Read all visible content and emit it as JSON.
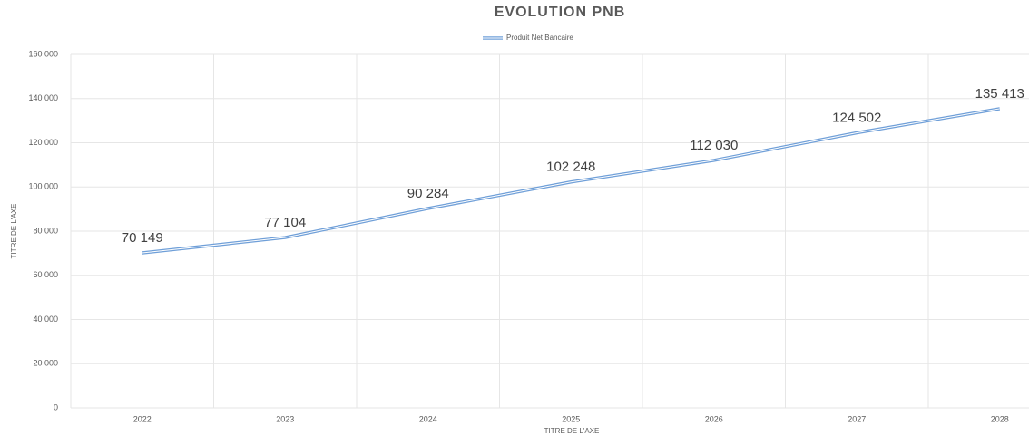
{
  "chart_data": {
    "type": "line",
    "title": "EVOLUTION PNB",
    "x_label": "TITRE DE L'AXE",
    "y_label": "TITRE DE L'AXE",
    "categories": [
      "2022",
      "2023",
      "2024",
      "2025",
      "2026",
      "2027",
      "2028"
    ],
    "series": [
      {
        "name": "Produit Net Bancaire",
        "color": "#6f9fd8",
        "values": [
          70149,
          77104,
          90284,
          102248,
          112030,
          124502,
          135413
        ],
        "value_labels": [
          "70 149",
          "77 104",
          "90 284",
          "102 248",
          "112 030",
          "124 502",
          "135 413"
        ]
      }
    ],
    "ylim": [
      0,
      160000
    ],
    "yticks": [
      0,
      {
        "value": 20000,
        "label": "20 000"
      },
      {
        "value": 40000,
        "label": "40 000"
      },
      {
        "value": 60000,
        "label": "60 000"
      },
      {
        "value": 80000,
        "label": "80 000"
      },
      {
        "value": 100000,
        "label": "100 000"
      },
      {
        "value": 120000,
        "label": "120 000"
      },
      {
        "value": 140000,
        "label": "140 000"
      },
      {
        "value": 160000,
        "label": "160 000"
      }
    ],
    "grid": true,
    "legend": "top"
  }
}
